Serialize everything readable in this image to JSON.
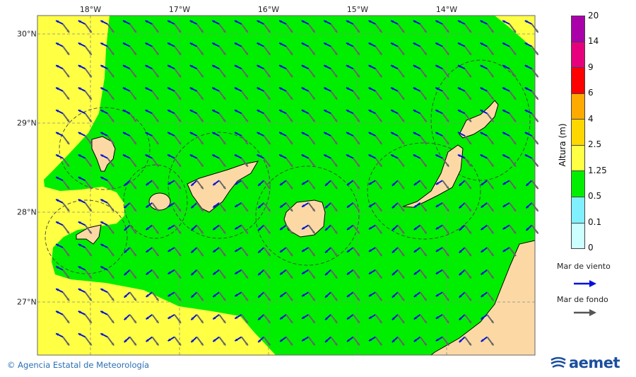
{
  "map": {
    "lon_labels": [
      "18°W",
      "17°W",
      "16°W",
      "15°W",
      "14°W"
    ],
    "lat_labels": [
      "30°N",
      "29°N",
      "28°N",
      "27°N"
    ],
    "colors": {
      "sea_green": "#00ee00",
      "sea_yellow": "#ffff44",
      "land": "#fcd9a4",
      "wind_arrow": "#0011dd",
      "swell_arrow": "#666666"
    }
  },
  "legend": {
    "title": "Altura (m)",
    "ticks": [
      "20",
      "14",
      "9",
      "6",
      "4",
      "2.5",
      "1.25",
      "0.5",
      "0.1",
      "0"
    ],
    "colors": [
      "#aa00aa",
      "#e6007e",
      "#ff0000",
      "#ffaa00",
      "#ffd700",
      "#ffff44",
      "#00ee00",
      "#80f0ff",
      "#ccffff"
    ],
    "wind_sea_label": "Mar de viento",
    "swell_label": "Mar de fondo"
  },
  "footer": {
    "credit": "© Agencia Estatal de Meteorología",
    "logo_text": "aemet"
  }
}
